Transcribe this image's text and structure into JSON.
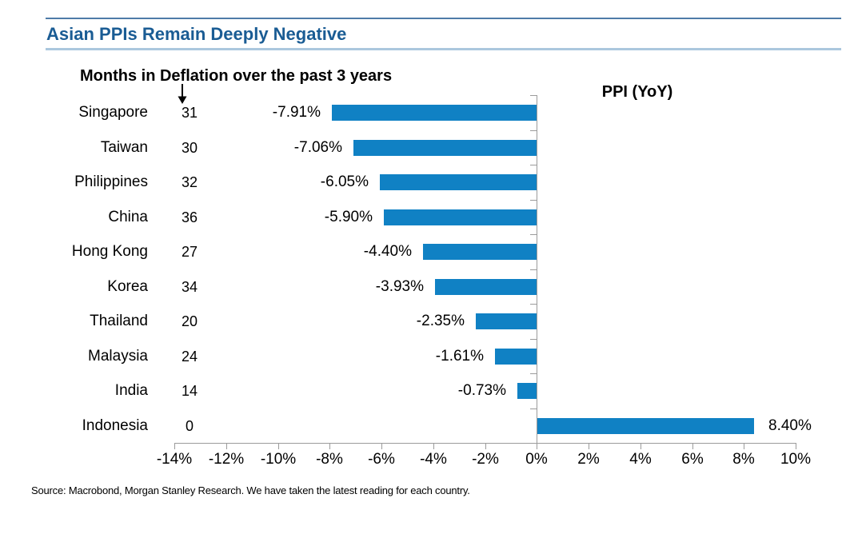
{
  "page_title": "Asian PPIs Remain Deeply Negative",
  "header": {
    "title": "Asian PPIs Remain Deeply Negative"
  },
  "chart_data": {
    "type": "bar",
    "orientation": "horizontal",
    "title": "Asian PPIs Remain Deeply Negative",
    "left_header": "Months in Deflation over the past 3 years",
    "right_header": "PPI (YoY)",
    "categories": [
      "Singapore",
      "Taiwan",
      "Philippines",
      "China",
      "Hong Kong",
      "Korea",
      "Thailand",
      "Malaysia",
      "India",
      "Indonesia"
    ],
    "months_in_deflation": [
      "31",
      "30",
      "32",
      "36",
      "27",
      "34",
      "20",
      "24",
      "14",
      "0"
    ],
    "values": [
      -7.91,
      -7.06,
      -6.05,
      -5.9,
      -4.4,
      -3.93,
      -2.35,
      -1.61,
      -0.73,
      8.4
    ],
    "value_labels": [
      "-7.91%",
      "-7.06%",
      "-6.05%",
      "-5.90%",
      "-4.40%",
      "-3.93%",
      "-2.35%",
      "-1.61%",
      "-0.73%",
      "8.40%"
    ],
    "xlabel": "",
    "ylabel": "",
    "xlim": [
      -14,
      10
    ],
    "x_ticks": [
      -14,
      -12,
      -10,
      -8,
      -6,
      -4,
      -2,
      0,
      2,
      4,
      6,
      8,
      10
    ],
    "x_tick_labels": [
      "-14%",
      "-12%",
      "-10%",
      "-8%",
      "-6%",
      "-4%",
      "-2%",
      "0%",
      "2%",
      "4%",
      "6%",
      "8%",
      "10%"
    ],
    "grid": false,
    "legend_position": "none"
  },
  "source_note": "Source: Macrobond, Morgan Stanley Research. We have taken the latest reading for each country.",
  "colors": {
    "bar": "#1081c4",
    "title_text": "#1a5c94",
    "rule_top": "#4e7ba8",
    "rule_bottom": "#abc7de",
    "axis": "#9b9b9b",
    "text": "#000000"
  }
}
